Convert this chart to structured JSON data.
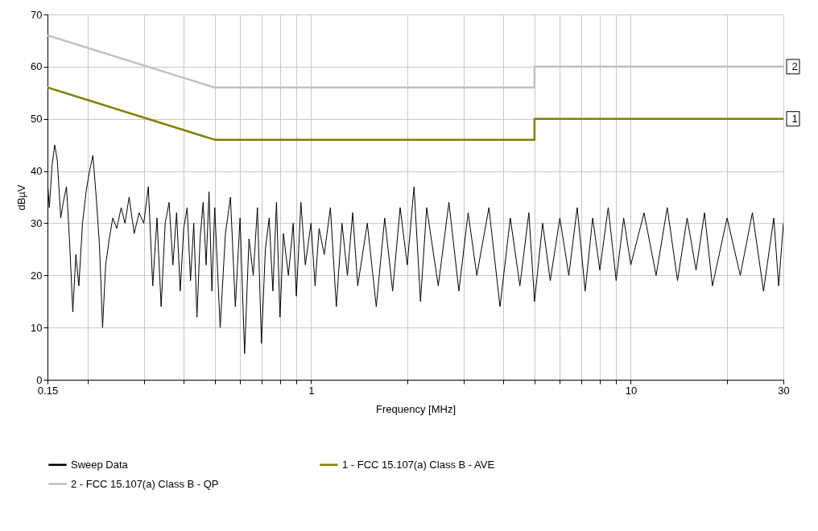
{
  "chart_data": {
    "type": "line",
    "xlabel": "Frequency [MHz]",
    "ylabel": "dBµV",
    "log": "x",
    "grid": true,
    "legend": "bottom",
    "xlim": [
      0.15,
      30
    ],
    "ylim": [
      0,
      70
    ],
    "xticks": [
      0.15,
      {
        "value": 0.2,
        "label": null
      },
      {
        "value": 0.3,
        "label": null
      },
      {
        "value": 0.4,
        "label": null
      },
      {
        "value": 0.5,
        "label": null
      },
      {
        "value": 0.6,
        "label": null
      },
      {
        "value": 0.7,
        "label": null
      },
      {
        "value": 0.8,
        "label": null
      },
      {
        "value": 0.9,
        "label": null
      },
      1,
      {
        "value": 2,
        "label": null
      },
      {
        "value": 3,
        "label": null
      },
      {
        "value": 4,
        "label": null
      },
      {
        "value": 5,
        "label": null
      },
      {
        "value": 6,
        "label": null
      },
      {
        "value": 7,
        "label": null
      },
      {
        "value": 8,
        "label": null
      },
      {
        "value": 9,
        "label": null
      },
      10,
      {
        "value": 20,
        "label": null
      },
      30
    ],
    "yticks": [
      0,
      10,
      20,
      30,
      40,
      50,
      60,
      70
    ],
    "series": [
      {
        "name": "Sweep Data",
        "color": "#000000",
        "x": [
          0.15,
          0.152,
          0.155,
          0.158,
          0.161,
          0.165,
          0.168,
          0.172,
          0.176,
          0.18,
          0.184,
          0.188,
          0.193,
          0.198,
          0.203,
          0.208,
          0.213,
          0.218,
          0.223,
          0.228,
          0.234,
          0.24,
          0.247,
          0.255,
          0.262,
          0.27,
          0.28,
          0.29,
          0.3,
          0.31,
          0.32,
          0.33,
          0.34,
          0.35,
          0.36,
          0.37,
          0.38,
          0.39,
          0.4,
          0.41,
          0.42,
          0.43,
          0.44,
          0.45,
          0.46,
          0.47,
          0.48,
          0.49,
          0.5,
          0.52,
          0.54,
          0.56,
          0.58,
          0.6,
          0.62,
          0.64,
          0.66,
          0.68,
          0.7,
          0.72,
          0.74,
          0.76,
          0.78,
          0.8,
          0.82,
          0.85,
          0.88,
          0.9,
          0.93,
          0.96,
          1.0,
          1.03,
          1.06,
          1.1,
          1.15,
          1.2,
          1.25,
          1.3,
          1.35,
          1.4,
          1.5,
          1.6,
          1.7,
          1.8,
          1.9,
          2.0,
          2.1,
          2.2,
          2.3,
          2.5,
          2.7,
          2.9,
          3.1,
          3.3,
          3.6,
          3.9,
          4.2,
          4.5,
          4.8,
          5.0,
          5.3,
          5.6,
          6.0,
          6.4,
          6.8,
          7.2,
          7.6,
          8.0,
          8.5,
          9.0,
          9.5,
          10,
          11,
          12,
          13,
          14,
          15,
          16,
          17,
          18,
          20,
          22,
          24,
          26,
          28,
          29,
          30
        ],
        "values": [
          38,
          33,
          41,
          45,
          42,
          31,
          34,
          37,
          26,
          13,
          24,
          18,
          30,
          36,
          40,
          43,
          35,
          26,
          10,
          22,
          27,
          31,
          29,
          33,
          30,
          35,
          28,
          32,
          30,
          37,
          18,
          31,
          14,
          30,
          34,
          22,
          32,
          17,
          29,
          33,
          19,
          30,
          12,
          27,
          34,
          22,
          36,
          17,
          33,
          10,
          28,
          35,
          14,
          31,
          5,
          27,
          20,
          33,
          7,
          25,
          31,
          17,
          34,
          12,
          28,
          20,
          30,
          16,
          34,
          22,
          30,
          18,
          29,
          24,
          33,
          14,
          30,
          20,
          32,
          18,
          30,
          14,
          31,
          17,
          33,
          22,
          37,
          15,
          33,
          18,
          34,
          17,
          32,
          20,
          33,
          14,
          31,
          18,
          32,
          15,
          30,
          19,
          31,
          20,
          33,
          17,
          31,
          21,
          33,
          19,
          31,
          22,
          32,
          20,
          33,
          19,
          31,
          21,
          32,
          18,
          31,
          20,
          32,
          17,
          31,
          18,
          30
        ]
      },
      {
        "name": "1 - FCC 15.107(a) Class B - AVE",
        "color": "#808000",
        "x": [
          0.15,
          0.5,
          5,
          5,
          30
        ],
        "values": [
          56,
          46,
          46,
          50,
          50
        ]
      },
      {
        "name": "2 - FCC 15.107(a) Class B - QP",
        "color": "#c0c0c0",
        "x": [
          0.15,
          0.5,
          5,
          5,
          30
        ],
        "values": [
          66,
          56,
          56,
          60,
          60
        ]
      }
    ],
    "annotations": [
      {
        "text": "1",
        "x": 30,
        "y": 50
      },
      {
        "text": "2",
        "x": 30,
        "y": 60
      }
    ]
  }
}
